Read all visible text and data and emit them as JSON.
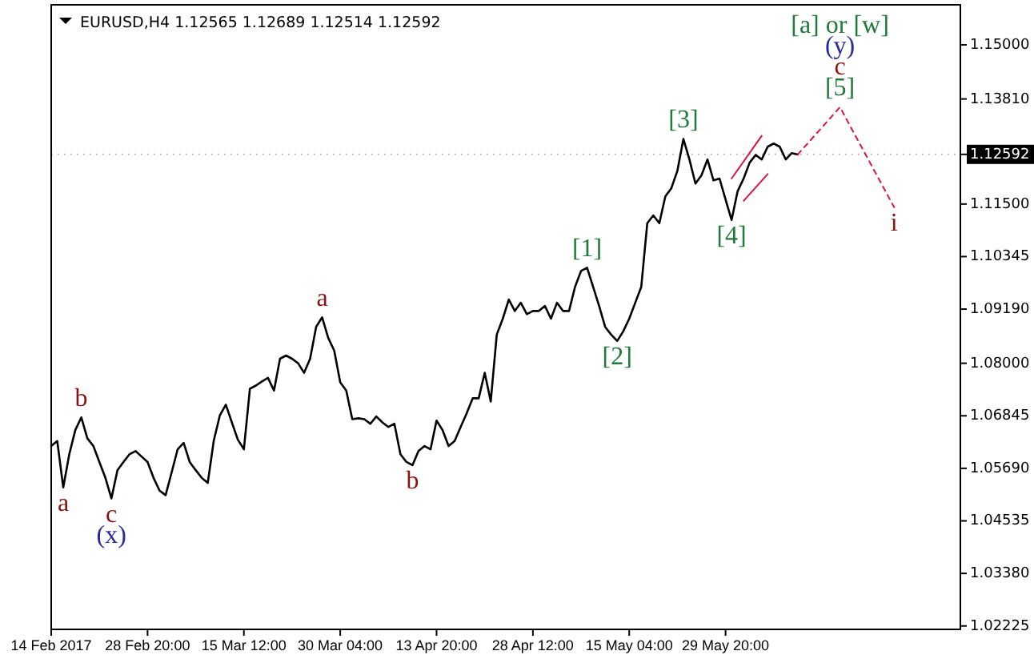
{
  "chart_data": {
    "type": "line",
    "title": "EURUSD,H4  1.12565 1.12689 1.12514 1.12592",
    "categories": [
      "14 Feb 2017",
      null,
      null,
      null,
      null,
      null,
      null,
      null,
      null,
      null,
      null,
      null,
      null,
      null,
      null,
      null,
      "28 Feb 20:00",
      null,
      null,
      null,
      null,
      null,
      null,
      null,
      null,
      null,
      null,
      null,
      null,
      null,
      null,
      null,
      "15 Mar 12:00",
      null,
      null,
      null,
      null,
      null,
      null,
      null,
      null,
      null,
      null,
      null,
      null,
      null,
      null,
      null,
      "30 Mar 04:00",
      null,
      null,
      null,
      null,
      null,
      null,
      null,
      null,
      null,
      null,
      null,
      null,
      null,
      null,
      null,
      "13 Apr 20:00",
      null,
      null,
      null,
      null,
      null,
      null,
      null,
      null,
      null,
      null,
      null,
      null,
      null,
      null,
      null,
      "28 Apr 12:00",
      null,
      null,
      null,
      null,
      null,
      null,
      null,
      null,
      null,
      null,
      null,
      null,
      null,
      null,
      null,
      "15 May 04:00",
      null,
      null,
      null,
      null,
      null,
      null,
      null,
      null,
      null,
      null,
      null,
      null,
      null,
      null,
      null,
      "29 May 20:00",
      null,
      null,
      null,
      null,
      null,
      null,
      null,
      null,
      null,
      null,
      null,
      null,
      null,
      null,
      null,
      null,
      null,
      null,
      null,
      null,
      null,
      null,
      null,
      null,
      null,
      null,
      null,
      null,
      null,
      null,
      null,
      null,
      null,
      null,
      null,
      null,
      null,
      null,
      null
    ],
    "ylim": [
      1.0215,
      1.1588
    ],
    "yticks": [
      {
        "value": 1.02225,
        "label": "1.02225"
      },
      {
        "value": 1.0338,
        "label": "1.03380"
      },
      {
        "value": 1.04535,
        "label": "1.04535"
      },
      {
        "value": 1.0569,
        "label": "1.05690"
      },
      {
        "value": 1.06845,
        "label": "1.06845"
      },
      {
        "value": 1.08,
        "label": "1.08000"
      },
      {
        "value": 1.0919,
        "label": "1.09190"
      },
      {
        "value": 1.10345,
        "label": "1.10345"
      },
      {
        "value": 1.115,
        "label": "1.11500"
      },
      {
        "value": 1.1381,
        "label": "1.13810"
      },
      {
        "value": 1.15,
        "label": "1.15000"
      }
    ],
    "grid": false,
    "series": [
      {
        "color": "#000000",
        "values": [
          1.0618,
          1.0629,
          1.0527,
          1.06,
          1.0653,
          1.0681,
          1.0635,
          1.0618,
          1.0583,
          1.0548,
          1.0503,
          1.0565,
          1.0583,
          1.06,
          1.0607,
          1.0595,
          1.0583,
          1.0548,
          1.052,
          1.051,
          1.056,
          1.0611,
          1.0625,
          1.0583,
          1.0565,
          1.0548,
          1.0537,
          1.063,
          1.0685,
          1.0709,
          1.067,
          1.0632,
          1.0611,
          1.0744,
          1.0751,
          1.076,
          1.0768,
          1.074,
          1.081,
          1.0817,
          1.081,
          1.08,
          1.0779,
          1.081,
          1.088,
          1.0901,
          1.0856,
          1.0828,
          1.0758,
          1.074,
          1.0677,
          1.0679,
          1.0677,
          1.0667,
          1.0683,
          1.067,
          1.066,
          1.0667,
          1.06,
          1.0583,
          1.0576,
          1.0607,
          1.0618,
          1.0611,
          1.0674,
          1.0653,
          1.0618,
          1.0629,
          1.066,
          1.069,
          1.0723,
          1.0723,
          1.0779,
          1.0716,
          1.0863,
          1.0898,
          1.094,
          1.0915,
          1.0933,
          1.0908,
          1.0915,
          1.0915,
          1.0926,
          1.0898,
          1.0933,
          1.0915,
          1.0915,
          1.0968,
          1.1003,
          1.101,
          1.0968,
          1.0926,
          1.088,
          1.0863,
          1.0849,
          1.087,
          1.0898,
          1.0933,
          1.0968,
          1.1108,
          1.1125,
          1.1108,
          1.1167,
          1.1185,
          1.1223,
          1.1293,
          1.1248,
          1.1195,
          1.1213,
          1.1248,
          1.1202,
          1.1206,
          1.116,
          1.1115,
          1.1178,
          1.1206,
          1.1241,
          1.1258,
          1.1248,
          1.1276,
          1.1283,
          1.1276,
          1.1248,
          1.1262,
          1.1259,
          null,
          null,
          null,
          null,
          null,
          null,
          null,
          null,
          null,
          null,
          null,
          null,
          null,
          null,
          null,
          null,
          null,
          null,
          null,
          null,
          null,
          null,
          null,
          null,
          null,
          null,
          null
        ]
      },
      {
        "color": "#dc143c",
        "line_style": "dashed",
        "values": [
          null,
          null,
          null,
          null,
          null,
          null,
          null,
          null,
          null,
          null,
          null,
          null,
          null,
          null,
          null,
          null,
          null,
          null,
          null,
          null,
          null,
          null,
          null,
          null,
          null,
          null,
          null,
          null,
          null,
          null,
          null,
          null,
          null,
          null,
          null,
          null,
          null,
          null,
          null,
          null,
          null,
          null,
          null,
          null,
          null,
          null,
          null,
          null,
          null,
          null,
          null,
          null,
          null,
          null,
          null,
          null,
          null,
          null,
          null,
          null,
          null,
          null,
          null,
          null,
          null,
          null,
          null,
          null,
          null,
          null,
          null,
          null,
          null,
          null,
          null,
          null,
          null,
          null,
          null,
          null,
          null,
          null,
          null,
          null,
          null,
          null,
          null,
          null,
          null,
          null,
          null,
          null,
          null,
          null,
          null,
          null,
          null,
          null,
          null,
          null,
          null,
          null,
          null,
          null,
          null,
          null,
          null,
          null,
          null,
          null,
          null,
          null,
          null,
          null,
          null,
          null,
          null,
          null,
          null,
          null,
          null,
          null,
          null,
          null,
          1.1259,
          null,
          null,
          null,
          null,
          null,
          null,
          1.1363,
          null,
          null,
          null,
          null,
          null,
          null,
          null,
          null,
          1.1143,
          null,
          null,
          null,
          null,
          null,
          null,
          null,
          null,
          null,
          null,
          null
        ]
      },
      {
        "color": "#dc143c",
        "values": [
          null,
          null,
          null,
          null,
          null,
          null,
          null,
          null,
          null,
          null,
          null,
          null,
          null,
          null,
          null,
          null,
          null,
          null,
          null,
          null,
          null,
          null,
          null,
          null,
          null,
          null,
          null,
          null,
          null,
          null,
          null,
          null,
          null,
          null,
          null,
          null,
          null,
          null,
          null,
          null,
          null,
          null,
          null,
          null,
          null,
          null,
          null,
          null,
          null,
          null,
          null,
          null,
          null,
          null,
          null,
          null,
          null,
          null,
          null,
          null,
          null,
          null,
          null,
          null,
          null,
          null,
          null,
          null,
          null,
          null,
          null,
          null,
          null,
          null,
          null,
          null,
          null,
          null,
          null,
          null,
          null,
          null,
          null,
          null,
          null,
          null,
          null,
          null,
          null,
          null,
          null,
          null,
          null,
          null,
          null,
          null,
          null,
          null,
          null,
          null,
          null,
          null,
          null,
          null,
          null,
          null,
          null,
          null,
          null,
          null,
          null,
          null,
          null,
          1.1206,
          null,
          null,
          null,
          null,
          1.13,
          null,
          null,
          null,
          null,
          null,
          null,
          null,
          null,
          null,
          null,
          null,
          null,
          null,
          null,
          null,
          null,
          null,
          null,
          null,
          null,
          null,
          null,
          null,
          null,
          null,
          null,
          null,
          null,
          null,
          null,
          null,
          null,
          null
        ]
      },
      {
        "color": "#dc143c",
        "values": [
          null,
          null,
          null,
          null,
          null,
          null,
          null,
          null,
          null,
          null,
          null,
          null,
          null,
          null,
          null,
          null,
          null,
          null,
          null,
          null,
          null,
          null,
          null,
          null,
          null,
          null,
          null,
          null,
          null,
          null,
          null,
          null,
          null,
          null,
          null,
          null,
          null,
          null,
          null,
          null,
          null,
          null,
          null,
          null,
          null,
          null,
          null,
          null,
          null,
          null,
          null,
          null,
          null,
          null,
          null,
          null,
          null,
          null,
          null,
          null,
          null,
          null,
          null,
          null,
          null,
          null,
          null,
          null,
          null,
          null,
          null,
          null,
          null,
          null,
          null,
          null,
          null,
          null,
          null,
          null,
          null,
          null,
          null,
          null,
          null,
          null,
          null,
          null,
          null,
          null,
          null,
          null,
          null,
          null,
          null,
          null,
          null,
          null,
          null,
          null,
          null,
          null,
          null,
          null,
          null,
          null,
          null,
          null,
          null,
          null,
          null,
          null,
          null,
          null,
          null,
          1.1157,
          null,
          null,
          null,
          1.1216,
          null,
          null,
          null,
          null,
          null,
          null,
          null,
          null,
          null,
          null,
          null,
          null,
          null,
          null,
          null,
          null,
          null,
          null,
          null,
          null,
          null,
          null,
          null,
          null,
          null,
          null,
          null,
          null,
          null,
          null,
          null,
          null
        ]
      }
    ],
    "ref_lines": [
      {
        "axis": "y",
        "value": 1.12592,
        "label": "1.12592",
        "color": "#000000"
      }
    ],
    "annotations": [
      {
        "text": "a",
        "y": 1.0527
      },
      {
        "text": "b",
        "y": 1.0681
      },
      {
        "text": "c",
        "y": 1.0503
      },
      {
        "text": "(x)",
        "y": 1.0503
      },
      {
        "text": "a",
        "y": 1.0901
      },
      {
        "text": "b",
        "y": 1.0576
      },
      {
        "text": "[1]",
        "y": 1.101
      },
      {
        "text": "[2]",
        "y": 1.0849
      },
      {
        "text": "[3]",
        "y": 1.1293
      },
      {
        "text": "[4]",
        "y": 1.1115
      },
      {
        "text": "[5]",
        "y": 1.1363
      },
      {
        "text": "c",
        "y": 1.1363
      },
      {
        "text": "(y)",
        "y": 1.1363
      },
      {
        "text": "[a] or [w]",
        "y": 1.1363
      },
      {
        "text": "i",
        "y": 1.1143
      }
    ]
  }
}
